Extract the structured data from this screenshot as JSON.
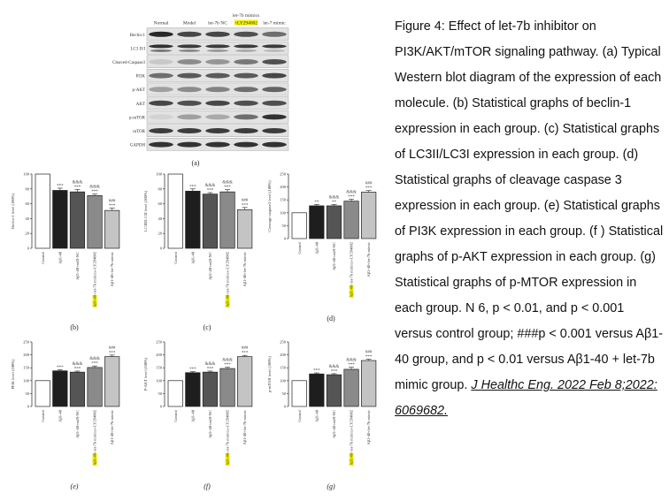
{
  "blot": {
    "panel_label": "(a)",
    "lanes": [
      "Normal",
      "Model",
      "let-7b NC",
      "let-7b mimics",
      "let-7 mimic"
    ],
    "lane4_extra": "+LY294002",
    "highlight_color": "#f5f000",
    "rows": [
      {
        "label": "Beclin-1",
        "intensity": [
          0.95,
          0.8,
          0.8,
          0.75,
          0.6
        ]
      },
      {
        "label": "LC3 II/I",
        "intensity": [
          0.9,
          0.85,
          0.85,
          0.85,
          0.85
        ]
      },
      {
        "label": "Cleaved-Caspase3",
        "intensity": [
          0.15,
          0.45,
          0.4,
          0.55,
          0.75
        ]
      },
      {
        "label": "PI3K",
        "intensity": [
          0.6,
          0.7,
          0.7,
          0.7,
          0.8
        ]
      },
      {
        "label": "p-AKT",
        "intensity": [
          0.35,
          0.45,
          0.5,
          0.6,
          0.65
        ]
      },
      {
        "label": "AKT",
        "intensity": [
          0.8,
          0.75,
          0.8,
          0.75,
          0.75
        ]
      },
      {
        "label": "p-mTOR",
        "intensity": [
          0.1,
          0.35,
          0.3,
          0.6,
          0.9
        ]
      },
      {
        "label": "mTOR",
        "intensity": [
          0.85,
          0.85,
          0.85,
          0.85,
          0.85
        ]
      },
      {
        "label": "GAPDH",
        "intensity": [
          0.9,
          0.9,
          0.9,
          0.9,
          0.9
        ]
      }
    ]
  },
  "chart_data": [
    {
      "panel": "(b)",
      "type": "bar",
      "ylabel": "Beclin-1 level (100%)",
      "ylim": [
        0,
        100
      ],
      "yticks": [
        0,
        20,
        40,
        60,
        80,
        100
      ],
      "categories": [
        "Control",
        "Aβ1-40",
        "Aβ1-40+miR-NC",
        "Aβ1-40+let-7b mimics+LY294002",
        "Aβ1-40+let-7b mimic"
      ],
      "values": [
        100,
        78,
        76,
        71,
        51
      ],
      "errors": [
        0,
        3,
        3,
        2,
        3
      ],
      "annotations": [
        "",
        "***",
        "***|&&&",
        "***|&&&",
        "***|###"
      ]
    },
    {
      "panel": "(c)",
      "type": "bar",
      "ylabel": "LC3II/LC3I level (100%)",
      "ylim": [
        0,
        100
      ],
      "yticks": [
        0,
        20,
        40,
        60,
        80,
        100
      ],
      "categories": [
        "Control",
        "Aβ1-40",
        "Aβ1-40+miR-NC",
        "Aβ1-40+let-7b mimics+LY294002",
        "Aβ1-40+let-7b mimic"
      ],
      "values": [
        100,
        77,
        73,
        76,
        52
      ],
      "errors": [
        0,
        3,
        2,
        3,
        3
      ],
      "annotations": [
        "",
        "***",
        "***|&&&",
        "***|&&&",
        "***|###"
      ]
    },
    {
      "panel": "(d)",
      "type": "bar",
      "ylabel": "Cleavage caspase3 level (100%)",
      "ylim": [
        0,
        250
      ],
      "yticks": [
        0,
        50,
        100,
        150,
        200,
        250
      ],
      "categories": [
        "Control",
        "Aβ1-40",
        "Aβ1-40+miR-NC",
        "Aβ1-40+let-7b mimics+LY294002",
        "Aβ1-40+let-7b mimic"
      ],
      "values": [
        100,
        127,
        127,
        145,
        180
      ],
      "errors": [
        0,
        5,
        5,
        8,
        6
      ],
      "annotations": [
        "",
        "**",
        "**|&&&",
        "***|&&&",
        "***|###"
      ]
    },
    {
      "panel": "(e)",
      "type": "bar",
      "ylabel": "PI3K level (100%)",
      "ylim": [
        0,
        250
      ],
      "yticks": [
        0,
        50,
        100,
        150,
        200,
        250
      ],
      "categories": [
        "Control",
        "Aβ1-40",
        "Aβ1-40+miR-NC",
        "Aβ1-40+let-7b mimics+LY294002",
        "Aβ1-40+let-7b mimic"
      ],
      "values": [
        100,
        138,
        133,
        151,
        193
      ],
      "errors": [
        0,
        4,
        4,
        6,
        6
      ],
      "annotations": [
        "",
        "***",
        "***|&&&",
        "***|&&&",
        "***|###"
      ]
    },
    {
      "panel": "(f)",
      "type": "bar",
      "ylabel": "P-AKT level (100%)",
      "ylim": [
        0,
        250
      ],
      "yticks": [
        0,
        50,
        100,
        150,
        200,
        250
      ],
      "categories": [
        "Control",
        "Aβ1-40",
        "Aβ1-40+miR-NC",
        "Aβ1-40+let-7b mimics+LY294002",
        "Aβ1-40+let-7b mimic"
      ],
      "values": [
        100,
        131,
        133,
        147,
        193
      ],
      "errors": [
        0,
        4,
        4,
        5,
        5
      ],
      "annotations": [
        "",
        "***",
        "***|&&&",
        "***|&&&",
        "***|###"
      ]
    },
    {
      "panel": "(g)",
      "type": "bar",
      "ylabel": "p-mTOR level (100%)",
      "ylim": [
        0,
        250
      ],
      "yticks": [
        0,
        50,
        100,
        150,
        200,
        250
      ],
      "categories": [
        "Control",
        "Aβ1-40",
        "Aβ1-40+miR-NC",
        "Aβ1-40+let-7b mimics+LY294002",
        "Aβ1-40+let-7b mimic"
      ],
      "values": [
        100,
        126,
        123,
        144,
        178
      ],
      "errors": [
        0,
        4,
        4,
        8,
        5
      ],
      "annotations": [
        "",
        "***",
        "***|&&&",
        "***|&&&",
        "***|###"
      ]
    }
  ],
  "bar_colors": [
    "#ffffff",
    "#1e1e1e",
    "#555555",
    "#8a8a8a",
    "#c4c4c4"
  ],
  "caption": {
    "text": "Figure 4: Effect of let-7b inhibitor on PI3K/AKT/mTOR signaling pathway. (a) Typical Western blot diagram of the expression of each molecule. (b) Statistical graphs of beclin-1 expression in each group. (c) Statistical graphs of LC3II/LC3I expression in each group. (d) Statistical graphs of cleavage caspase 3 expression in each group. (e) Statistical graphs of PI3K expression in each group. (f ) Statistical graphs of p-AKT expression in each group. (g) Statistical graphs of p-MTOR expression in each group. N 6, p < 0.01, and    p < 0.001 versus control group; ###p < 0.001 versus Aβ1-40 group, and p < 0.01 versus Aβ1-40 + let-7b mimic group.",
    "citation": "J Healthc Eng. 2022 Feb 8;2022: 6069682."
  }
}
